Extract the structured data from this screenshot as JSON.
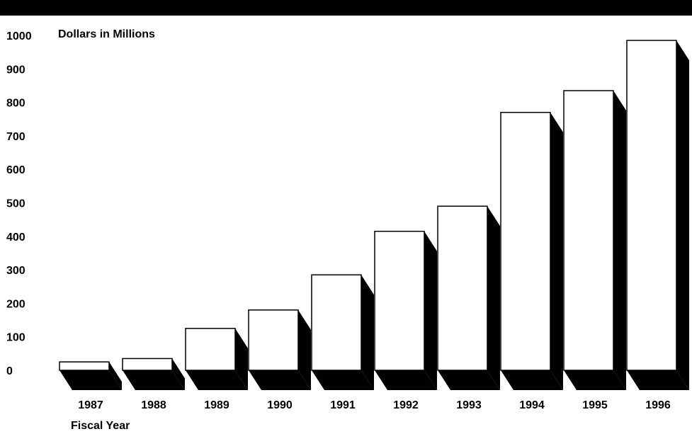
{
  "chart_data": {
    "type": "bar",
    "title": "",
    "ylabel": "Dollars in Millions",
    "xlabel": "Fiscal Year",
    "categories": [
      "1987",
      "1988",
      "1989",
      "1990",
      "1991",
      "1992",
      "1993",
      "1994",
      "1995",
      "1996"
    ],
    "values": [
      25,
      35,
      125,
      180,
      285,
      415,
      490,
      770,
      835,
      985
    ],
    "ylim": [
      0,
      1000
    ],
    "yticks": [
      "0",
      "100",
      "200",
      "300",
      "400",
      "500",
      "600",
      "700",
      "800",
      "900",
      "1000"
    ],
    "grid": false,
    "legend": "none",
    "colors": {
      "bar_face": "#ffffff",
      "bar_outline": "#000000",
      "shadow": "#000000"
    }
  }
}
